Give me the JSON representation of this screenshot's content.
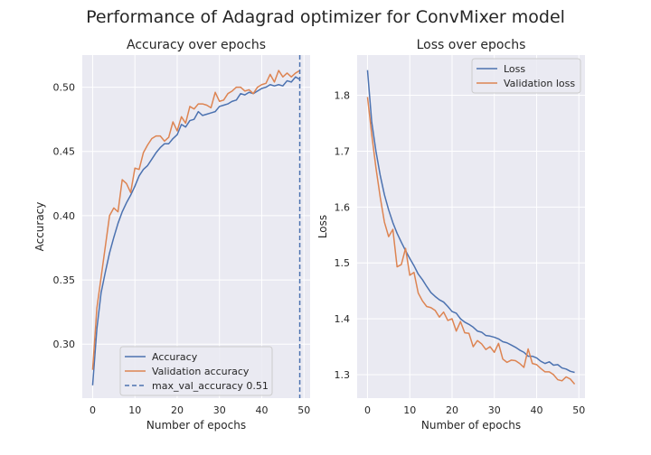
{
  "figure": {
    "title": "Performance of Adagrad optimizer for ConvMixer model"
  },
  "colors": {
    "blue": "#4c72b0",
    "orange": "#dd8452",
    "panel_bg": "#eaeaf2",
    "grid": "#ffffff"
  },
  "chart_data": [
    {
      "type": "line",
      "title": "Accuracy over epochs",
      "xlabel": "Number of epochs",
      "ylabel": "Accuracy",
      "xlim": [
        -2.45,
        51.45
      ],
      "ylim": [
        0.258,
        0.525
      ],
      "xticks": [
        0,
        10,
        20,
        30,
        40,
        50
      ],
      "yticks": [
        0.3,
        0.35,
        0.4,
        0.45,
        0.5
      ],
      "ytick_labels": [
        "0.30",
        "0.35",
        "0.40",
        "0.45",
        "0.50"
      ],
      "grid": true,
      "legend_position": "lower center",
      "legend": [
        "Accuracy",
        "Validation accuracy",
        "max_val_accuracy 0.51"
      ],
      "x": [
        0,
        1,
        2,
        3,
        4,
        5,
        6,
        7,
        8,
        9,
        10,
        11,
        12,
        13,
        14,
        15,
        16,
        17,
        18,
        19,
        20,
        21,
        22,
        23,
        24,
        25,
        26,
        27,
        28,
        29,
        30,
        31,
        32,
        33,
        34,
        35,
        36,
        37,
        38,
        39,
        40,
        41,
        42,
        43,
        44,
        45,
        46,
        47,
        48,
        49
      ],
      "series": [
        {
          "name": "Accuracy",
          "color": "#4c72b0",
          "values": [
            0.268,
            0.312,
            0.34,
            0.356,
            0.371,
            0.383,
            0.394,
            0.403,
            0.41,
            0.416,
            0.423,
            0.431,
            0.436,
            0.439,
            0.444,
            0.449,
            0.453,
            0.456,
            0.456,
            0.46,
            0.463,
            0.471,
            0.469,
            0.474,
            0.475,
            0.481,
            0.478,
            0.479,
            0.48,
            0.481,
            0.485,
            0.486,
            0.487,
            0.489,
            0.49,
            0.495,
            0.494,
            0.496,
            0.495,
            0.497,
            0.499,
            0.5,
            0.502,
            0.501,
            0.502,
            0.501,
            0.505,
            0.504,
            0.508,
            0.506
          ]
        },
        {
          "name": "Validation accuracy",
          "color": "#dd8452",
          "values": [
            0.28,
            0.328,
            0.352,
            0.376,
            0.4,
            0.406,
            0.403,
            0.428,
            0.425,
            0.418,
            0.437,
            0.436,
            0.449,
            0.455,
            0.46,
            0.462,
            0.462,
            0.458,
            0.461,
            0.473,
            0.466,
            0.477,
            0.472,
            0.485,
            0.483,
            0.487,
            0.487,
            0.486,
            0.484,
            0.496,
            0.489,
            0.49,
            0.495,
            0.497,
            0.5,
            0.5,
            0.497,
            0.498,
            0.495,
            0.5,
            0.502,
            0.503,
            0.51,
            0.504,
            0.513,
            0.508,
            0.511,
            0.508,
            0.511,
            0.513
          ]
        }
      ],
      "vline": {
        "name": "max_val_accuracy 0.51",
        "x": 49,
        "color": "#4c72b0",
        "style": "dashed"
      }
    },
    {
      "type": "line",
      "title": "Loss over epochs",
      "xlabel": "Number of epochs",
      "ylabel": "Loss",
      "xlim": [
        -2.45,
        51.45
      ],
      "ylim": [
        1.258,
        1.872
      ],
      "xticks": [
        0,
        10,
        20,
        30,
        40,
        50
      ],
      "yticks": [
        1.3,
        1.4,
        1.5,
        1.6,
        1.7,
        1.8
      ],
      "ytick_labels": [
        "1.3",
        "1.4",
        "1.5",
        "1.6",
        "1.7",
        "1.8"
      ],
      "grid": true,
      "legend_position": "upper right",
      "legend": [
        "Loss",
        "Validation loss"
      ],
      "x": [
        0,
        1,
        2,
        3,
        4,
        5,
        6,
        7,
        8,
        9,
        10,
        11,
        12,
        13,
        14,
        15,
        16,
        17,
        18,
        19,
        20,
        21,
        22,
        23,
        24,
        25,
        26,
        27,
        28,
        29,
        30,
        31,
        32,
        33,
        34,
        35,
        36,
        37,
        38,
        39,
        40,
        41,
        42,
        43,
        44,
        45,
        46,
        47,
        48,
        49
      ],
      "series": [
        {
          "name": "Loss",
          "color": "#4c72b0",
          "values": [
            1.845,
            1.752,
            1.7,
            1.657,
            1.622,
            1.595,
            1.572,
            1.553,
            1.537,
            1.522,
            1.508,
            1.495,
            1.48,
            1.47,
            1.458,
            1.447,
            1.44,
            1.434,
            1.43,
            1.422,
            1.413,
            1.41,
            1.4,
            1.394,
            1.39,
            1.385,
            1.378,
            1.376,
            1.37,
            1.369,
            1.367,
            1.364,
            1.359,
            1.357,
            1.353,
            1.349,
            1.344,
            1.34,
            1.333,
            1.333,
            1.33,
            1.324,
            1.32,
            1.323,
            1.317,
            1.318,
            1.312,
            1.31,
            1.306,
            1.304
          ]
        },
        {
          "name": "Validation loss",
          "color": "#dd8452",
          "values": [
            1.797,
            1.73,
            1.67,
            1.618,
            1.573,
            1.547,
            1.56,
            1.493,
            1.497,
            1.526,
            1.478,
            1.483,
            1.446,
            1.432,
            1.422,
            1.42,
            1.415,
            1.403,
            1.412,
            1.397,
            1.4,
            1.378,
            1.395,
            1.375,
            1.374,
            1.35,
            1.361,
            1.355,
            1.345,
            1.35,
            1.34,
            1.356,
            1.328,
            1.322,
            1.326,
            1.325,
            1.32,
            1.313,
            1.346,
            1.32,
            1.318,
            1.311,
            1.305,
            1.305,
            1.3,
            1.291,
            1.289,
            1.296,
            1.292,
            1.283
          ]
        }
      ]
    }
  ]
}
